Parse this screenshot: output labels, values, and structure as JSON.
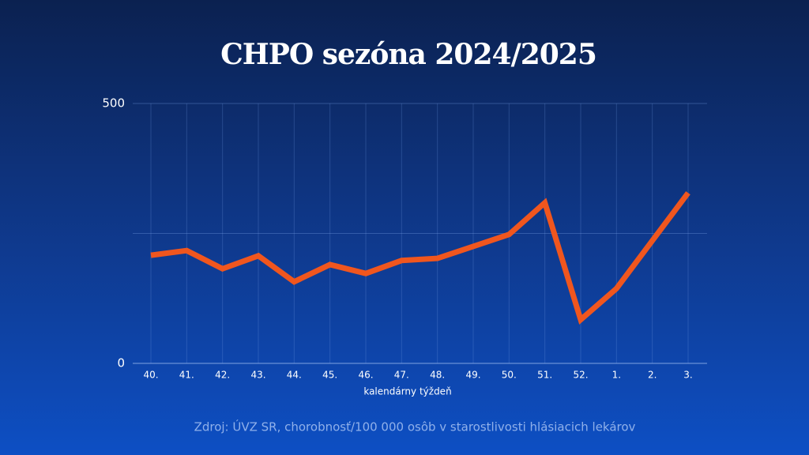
{
  "chart_data": {
    "type": "line",
    "title": "CHPO sezóna 2024/2025",
    "x_label": "kalendárny týždeň",
    "source": "Zdroj: ÚVZ SR, chorobnosť/100 000 osôb v starostlivosti hlásiacich lekárov",
    "categories": [
      "40.",
      "41.",
      "42.",
      "43.",
      "44.",
      "45.",
      "46.",
      "47.",
      "48.",
      "49.",
      "50.",
      "51.",
      "52.",
      "1.",
      "2.",
      "3."
    ],
    "series": [
      {
        "color": "#f0561e",
        "values": [
          208,
          217,
          182,
          207,
          157,
          190,
          173,
          198,
          202,
          225,
          248,
          309,
          84,
          144,
          236,
          328
        ]
      }
    ],
    "ylim": [
      0,
      500
    ],
    "yticks": [
      0,
      500
    ],
    "ygrid": [
      0,
      250,
      500
    ],
    "grid": true
  }
}
